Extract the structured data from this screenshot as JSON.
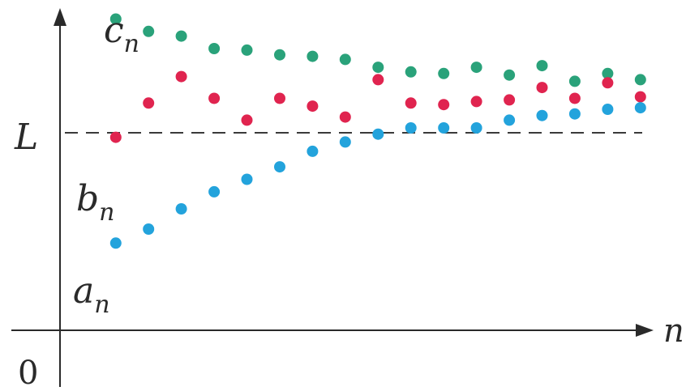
{
  "labels": {
    "c_main": "c",
    "c_sub": "n",
    "b_main": "b",
    "b_sub": "n",
    "a_main": "a",
    "a_sub": "n",
    "limit": "L",
    "origin": "0",
    "x_axis": "n"
  },
  "colors": {
    "c_n": "#2aa27a",
    "b_n": "#e0244f",
    "a_n": "#23a3dc",
    "axis": "#2a2a2a"
  },
  "chart_data": {
    "type": "scatter",
    "L": 0,
    "ylim": [
      -7.75,
      2.6
    ],
    "xlim": [
      -0.7,
      17.4
    ],
    "grid": false,
    "series": [
      {
        "key": "c_n",
        "x": [
          1,
          2,
          3,
          4,
          5,
          6,
          7,
          8,
          9,
          10,
          11,
          12,
          13,
          14,
          15,
          16,
          17
        ],
        "values": [
          2.25,
          1.85,
          1.7,
          1.3,
          1.25,
          1.1,
          1.05,
          0.95,
          0.7,
          0.55,
          0.5,
          0.7,
          0.45,
          0.75,
          0.25,
          0.5,
          0.3
        ]
      },
      {
        "key": "b_n",
        "x": [
          1,
          2,
          3,
          4,
          5,
          6,
          7,
          8,
          9,
          10,
          11,
          12,
          13,
          14,
          15,
          16,
          17
        ],
        "values": [
          -1.55,
          -0.45,
          0.4,
          -0.3,
          -1.0,
          -0.3,
          -0.55,
          -0.9,
          0.3,
          -0.45,
          -0.5,
          -0.4,
          -0.35,
          0.05,
          -0.3,
          0.2,
          -0.25
        ]
      },
      {
        "key": "a_n",
        "x": [
          1,
          2,
          3,
          4,
          5,
          6,
          7,
          8,
          9,
          10,
          11,
          12,
          13,
          14,
          15,
          16,
          17
        ],
        "values": [
          -4.95,
          -4.5,
          -3.85,
          -3.3,
          -2.9,
          -2.5,
          -2.0,
          -1.7,
          -1.45,
          -1.25,
          -1.25,
          -1.25,
          -1.0,
          -0.85,
          -0.8,
          -0.65,
          -0.6
        ]
      }
    ]
  }
}
